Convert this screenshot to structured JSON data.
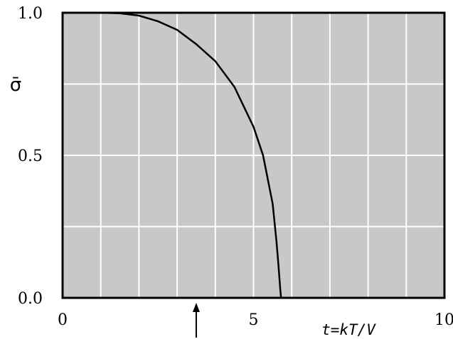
{
  "chart_data": {
    "type": "line",
    "ylabel": "σ̄",
    "xlabel": "t=kT/V",
    "xlim": [
      0,
      10
    ],
    "ylim": [
      0,
      1
    ],
    "grid": true,
    "x_ticks": [
      "0",
      "5",
      "10"
    ],
    "y_ticks": [
      "0.0",
      "0.5",
      "1.0"
    ],
    "background_color": "#c8c8c8",
    "grid_color": "#ffffff",
    "line_color": "#000000",
    "series": [
      {
        "x": [
          0,
          0.5,
          1.0,
          1.5,
          2.0,
          2.5,
          3.0,
          3.5,
          4.0,
          4.5,
          5.0,
          5.25,
          5.5,
          5.6,
          5.65,
          5.7,
          5.72
        ],
        "y": [
          1.0,
          1.0,
          1.0,
          0.998,
          0.99,
          0.97,
          0.94,
          0.89,
          0.83,
          0.74,
          0.6,
          0.5,
          0.33,
          0.2,
          0.12,
          0.03,
          0.0
        ]
      }
    ],
    "annotations": [
      {
        "type": "arrow",
        "x": 3.5,
        "direction": "up"
      }
    ]
  }
}
